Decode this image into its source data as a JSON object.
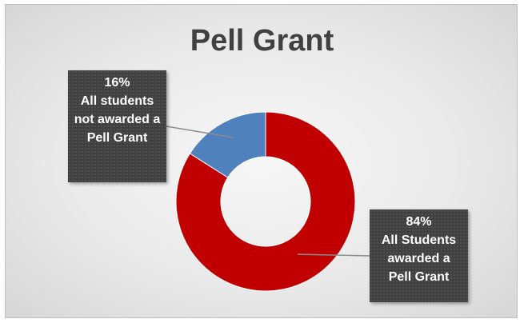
{
  "chart_data": {
    "type": "donut",
    "title": "Pell Grant",
    "categories": [
      "All Students awarded a Pell Grant",
      "All students not awarded a Pell Grant"
    ],
    "values": [
      84,
      16
    ],
    "value_labels": [
      "84%",
      "16%"
    ],
    "colors": [
      "#c00000",
      "#4f81bd"
    ]
  }
}
